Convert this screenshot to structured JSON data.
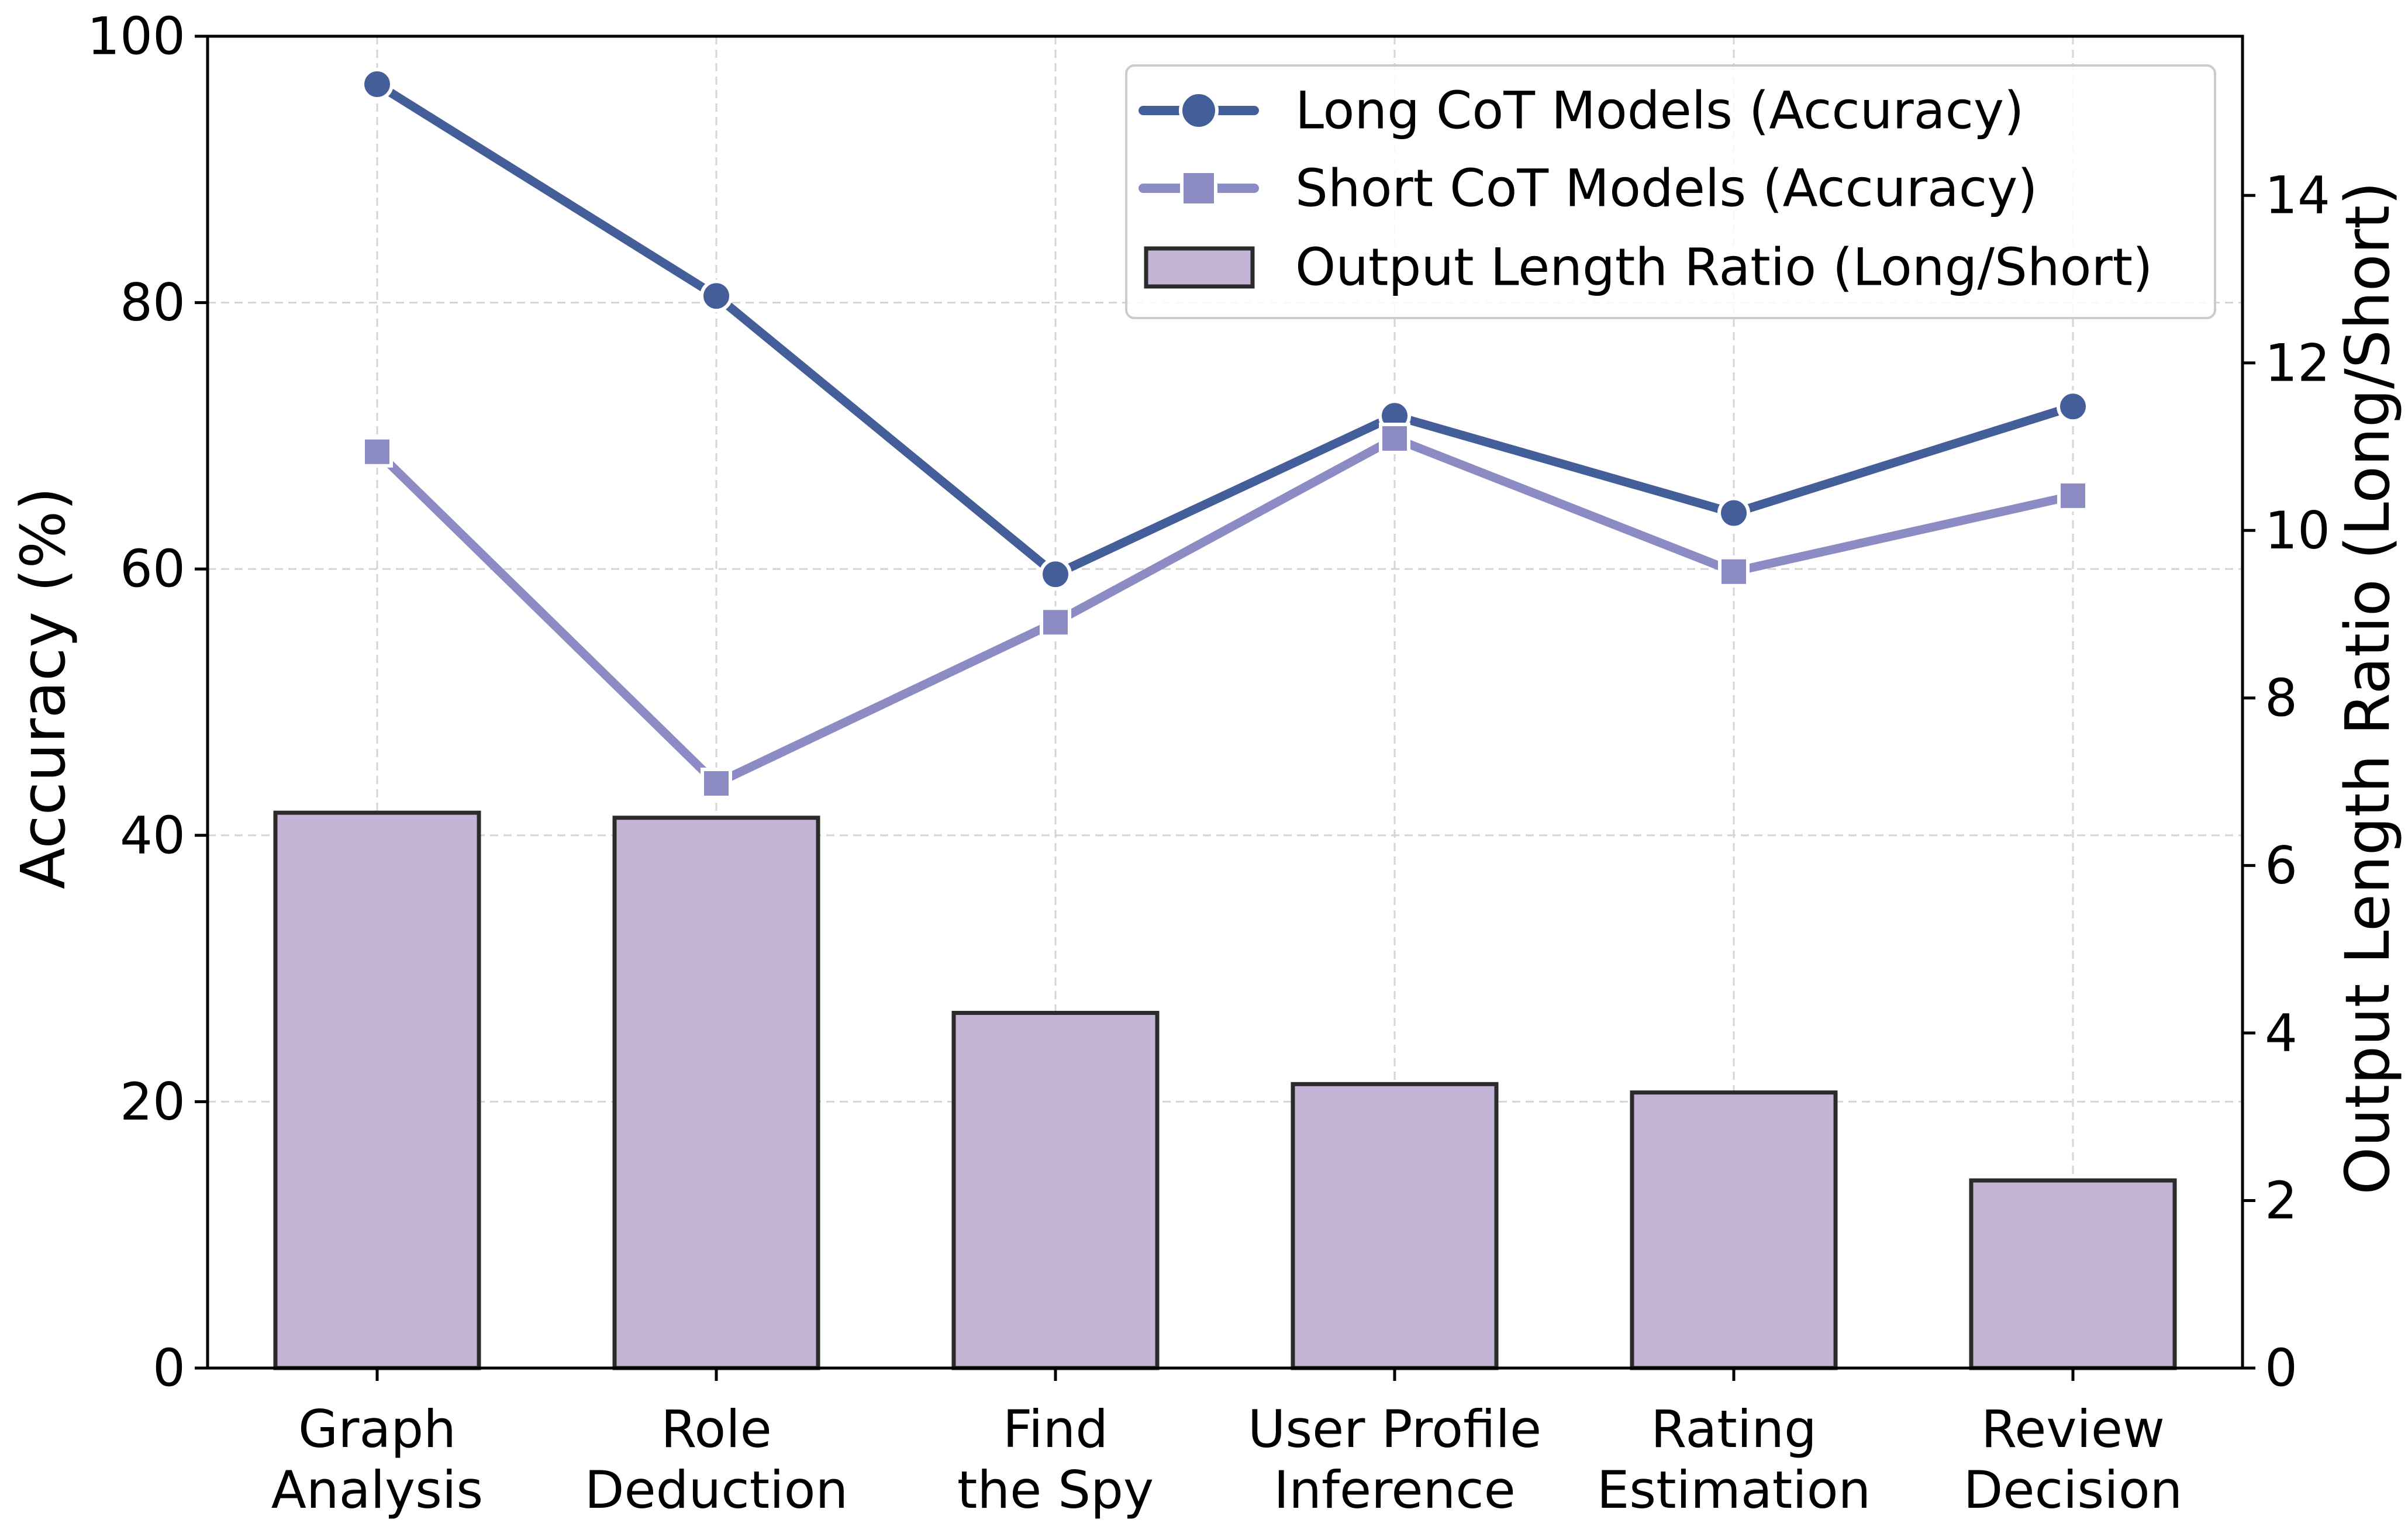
{
  "colors": {
    "long_line": "#445E99",
    "short_line": "#8D8BC3",
    "bar_fill": "#C4B5D6",
    "bar_edge": "#2B2B2B",
    "grid": "#D5D5D5",
    "axis": "#000000"
  },
  "chart_data": {
    "type": "bar",
    "categories": [
      [
        "Graph",
        "Analysis"
      ],
      [
        "Role",
        "Deduction"
      ],
      [
        "Find",
        "the Spy"
      ],
      [
        "User Profile",
        "Inference"
      ],
      [
        "Rating",
        "Estimation"
      ],
      [
        "Review",
        "Decision"
      ]
    ],
    "ylabel": "Accuracy (%)",
    "ylabel_right": "Output Length Ratio (Long/Short)",
    "ylim": [
      0,
      100
    ],
    "yticks": [
      0,
      20,
      40,
      60,
      80,
      100
    ],
    "ylim_right": [
      0,
      15.9
    ],
    "yticks_right": [
      0,
      2,
      4,
      6,
      8,
      10,
      12,
      14
    ],
    "grid": true,
    "legend_position": "top-right",
    "bars": {
      "name": "Output Length Ratio (Long/Short)",
      "axis": "right",
      "values": [
        6.63,
        6.57,
        4.24,
        3.39,
        3.29,
        2.24
      ]
    },
    "series": [
      {
        "name": "Long CoT Models (Accuracy)",
        "axis": "left",
        "marker": "circle",
        "values": [
          96.4,
          80.5,
          59.6,
          71.5,
          64.2,
          72.2
        ]
      },
      {
        "name": "Short CoT Models (Accuracy)",
        "axis": "left",
        "marker": "square",
        "values": [
          68.8,
          43.9,
          56.0,
          69.8,
          59.8,
          65.5
        ]
      }
    ]
  }
}
